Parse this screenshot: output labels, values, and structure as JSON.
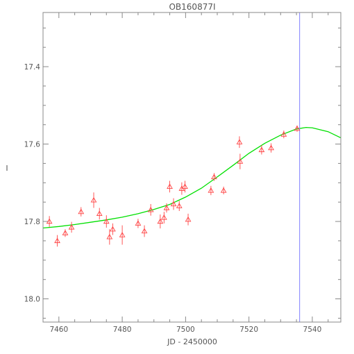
{
  "chart_data": {
    "type": "scatter",
    "title": "OB160877I",
    "xlabel": "JD - 2450000",
    "ylabel": "I",
    "xlim": [
      7455,
      7549
    ],
    "ylim": [
      18.06,
      17.26
    ],
    "y_inverted": true,
    "grid": false,
    "x_ticks": [
      7460,
      7480,
      7500,
      7520,
      7540
    ],
    "y_ticks": [
      17.4,
      17.6,
      17.8,
      18.0
    ],
    "y_tick_labels": [
      "17.4",
      "17.6",
      "17.8",
      "18.0"
    ],
    "vertical_line_x": 7536,
    "colors": {
      "points": "#ff4444",
      "model": "#00e000",
      "vline": "#7f7fff",
      "axes": "#888888"
    },
    "series": [
      {
        "kind": "observations",
        "marker": "triangle-up",
        "points": [
          {
            "x": 7457.0,
            "y": 17.8,
            "err": 0.014
          },
          {
            "x": 7459.5,
            "y": 17.85,
            "err": 0.015
          },
          {
            "x": 7462.0,
            "y": 17.83,
            "err": 0.01
          },
          {
            "x": 7464.0,
            "y": 17.815,
            "err": 0.014
          },
          {
            "x": 7467.0,
            "y": 17.775,
            "err": 0.012
          },
          {
            "x": 7471.0,
            "y": 17.745,
            "err": 0.02
          },
          {
            "x": 7472.8,
            "y": 17.78,
            "err": 0.015
          },
          {
            "x": 7475.0,
            "y": 17.8,
            "err": 0.016
          },
          {
            "x": 7476.0,
            "y": 17.84,
            "err": 0.02
          },
          {
            "x": 7477.0,
            "y": 17.82,
            "err": 0.015
          },
          {
            "x": 7480.0,
            "y": 17.835,
            "err": 0.025
          },
          {
            "x": 7485.0,
            "y": 17.805,
            "err": 0.012
          },
          {
            "x": 7487.0,
            "y": 17.825,
            "err": 0.015
          },
          {
            "x": 7489.0,
            "y": 17.77,
            "err": 0.015
          },
          {
            "x": 7492.0,
            "y": 17.8,
            "err": 0.018
          },
          {
            "x": 7493.2,
            "y": 17.79,
            "err": 0.015
          },
          {
            "x": 7494.0,
            "y": 17.765,
            "err": 0.012
          },
          {
            "x": 7495.0,
            "y": 17.71,
            "err": 0.015
          },
          {
            "x": 7496.2,
            "y": 17.755,
            "err": 0.015
          },
          {
            "x": 7498.0,
            "y": 17.76,
            "err": 0.013
          },
          {
            "x": 7498.8,
            "y": 17.715,
            "err": 0.016
          },
          {
            "x": 7499.8,
            "y": 17.71,
            "err": 0.015
          },
          {
            "x": 7500.8,
            "y": 17.795,
            "err": 0.015
          },
          {
            "x": 7508.0,
            "y": 17.72,
            "err": 0.012
          },
          {
            "x": 7509.0,
            "y": 17.685,
            "err": 0.01
          },
          {
            "x": 7512.0,
            "y": 17.72,
            "err": 0.01
          },
          {
            "x": 7517.0,
            "y": 17.595,
            "err": 0.015
          },
          {
            "x": 7517.2,
            "y": 17.645,
            "err": 0.02
          },
          {
            "x": 7524.0,
            "y": 17.615,
            "err": 0.012
          },
          {
            "x": 7527.0,
            "y": 17.61,
            "err": 0.012
          },
          {
            "x": 7531.0,
            "y": 17.575,
            "err": 0.01
          },
          {
            "x": 7535.2,
            "y": 17.56,
            "err": 0.008
          }
        ]
      },
      {
        "kind": "model",
        "marker": "line",
        "x": [
          7455,
          7460,
          7465,
          7470,
          7475,
          7480,
          7485,
          7490,
          7495,
          7500,
          7505,
          7510,
          7515,
          7520,
          7525,
          7530,
          7535,
          7538,
          7540,
          7545,
          7549
        ],
        "y": [
          17.817,
          17.813,
          17.808,
          17.802,
          17.796,
          17.789,
          17.78,
          17.769,
          17.756,
          17.737,
          17.714,
          17.685,
          17.655,
          17.624,
          17.598,
          17.577,
          17.561,
          17.557,
          17.558,
          17.568,
          17.584
        ]
      }
    ]
  }
}
